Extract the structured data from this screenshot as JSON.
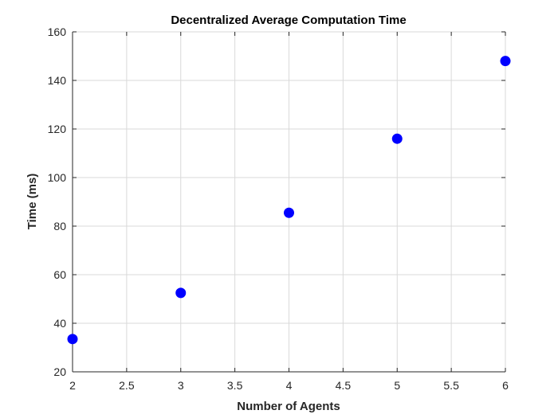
{
  "chart_data": {
    "type": "scatter",
    "title": "Decentralized Average Computation Time",
    "xlabel": "Number of Agents",
    "ylabel": "Time (ms)",
    "xlim": [
      2,
      6
    ],
    "ylim": [
      20,
      160
    ],
    "xticks": [
      2,
      2.5,
      3,
      3.5,
      4,
      4.5,
      5,
      5.5,
      6
    ],
    "xtick_labels": [
      "2",
      "2.5",
      "3",
      "3.5",
      "4",
      "4.5",
      "5",
      "5.5",
      "6"
    ],
    "yticks": [
      20,
      40,
      60,
      80,
      100,
      120,
      140,
      160
    ],
    "ytick_labels": [
      "20",
      "40",
      "60",
      "80",
      "100",
      "120",
      "140",
      "160"
    ],
    "grid": true,
    "series": [
      {
        "color": "#0000ff",
        "marker": "filled-circle",
        "x": [
          2,
          3,
          4,
          5,
          6
        ],
        "y": [
          33.5,
          52.5,
          85.5,
          116,
          148
        ]
      }
    ]
  }
}
